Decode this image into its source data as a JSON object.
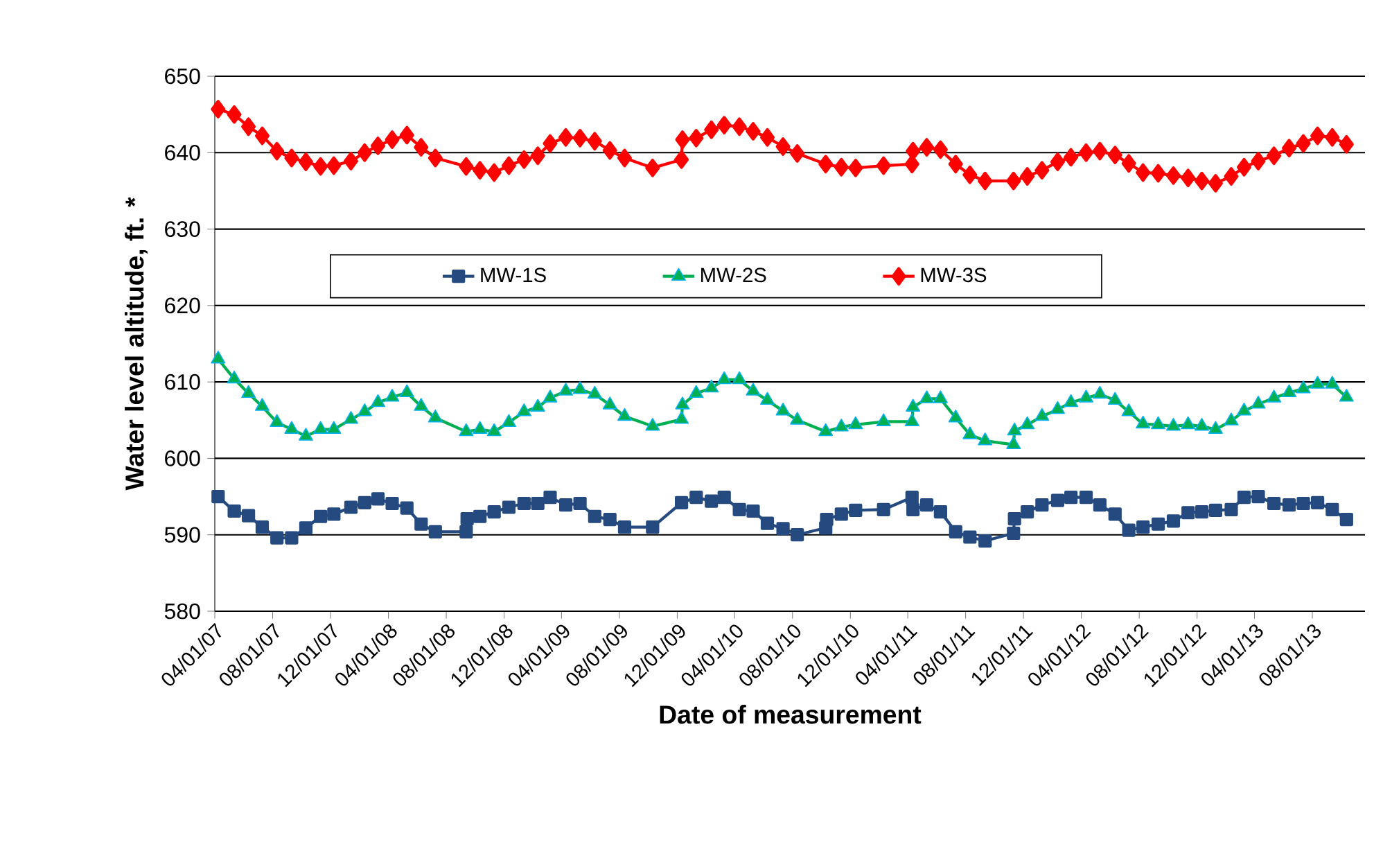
{
  "chart_data": {
    "type": "line",
    "xlabel": "Date of measurement",
    "ylabel": "Water level altitude, ft. *",
    "xlim": [
      "2007-04-01",
      "2013-11-20"
    ],
    "ylim": [
      580,
      650
    ],
    "yticks": [
      580,
      590,
      600,
      610,
      620,
      630,
      640,
      650
    ],
    "xticks": [
      {
        "value": "2007-04-01",
        "label": "04/01/07"
      },
      {
        "value": "2007-08-01",
        "label": "08/01/07"
      },
      {
        "value": "2007-12-01",
        "label": "12/01/07"
      },
      {
        "value": "2008-04-01",
        "label": "04/01/08"
      },
      {
        "value": "2008-08-01",
        "label": "08/01/08"
      },
      {
        "value": "2008-12-01",
        "label": "12/01/08"
      },
      {
        "value": "2009-04-01",
        "label": "04/01/09"
      },
      {
        "value": "2009-08-01",
        "label": "08/01/09"
      },
      {
        "value": "2009-12-01",
        "label": "12/01/09"
      },
      {
        "value": "2010-04-01",
        "label": "04/01/10"
      },
      {
        "value": "2010-08-01",
        "label": "08/01/10"
      },
      {
        "value": "2010-12-01",
        "label": "12/01/10"
      },
      {
        "value": "2011-04-01",
        "label": "04/01/11"
      },
      {
        "value": "2011-08-01",
        "label": "08/01/11"
      },
      {
        "value": "2011-12-01",
        "label": "12/01/11"
      },
      {
        "value": "2012-04-01",
        "label": "04/01/12"
      },
      {
        "value": "2012-08-01",
        "label": "08/01/12"
      },
      {
        "value": "2012-12-01",
        "label": "12/01/12"
      },
      {
        "value": "2013-04-01",
        "label": "04/01/13"
      },
      {
        "value": "2013-08-01",
        "label": "08/01/13"
      }
    ],
    "grid": "y",
    "legend": "top",
    "line_style": "solid",
    "series": [
      {
        "name": "MW-1S",
        "color": "#244a80",
        "marker": "square",
        "x": [
          "2007-04-08",
          "2007-05-12",
          "2007-06-11",
          "2007-07-10",
          "2007-08-10",
          "2007-09-10",
          "2007-10-10",
          "2007-11-10",
          "2007-12-08",
          "2008-01-13",
          "2008-02-11",
          "2008-03-10",
          "2008-04-09",
          "2008-05-10",
          "2008-06-09",
          "2008-07-09",
          "2008-09-12",
          "2008-09-14",
          "2008-10-11",
          "2008-11-10",
          "2008-12-11",
          "2009-01-12",
          "2009-02-10",
          "2009-03-08",
          "2009-04-10",
          "2009-05-10",
          "2009-06-10",
          "2009-07-12",
          "2009-08-12",
          "2009-10-10",
          "2009-12-10",
          "2010-01-10",
          "2010-02-11",
          "2010-03-10",
          "2010-04-11",
          "2010-05-10",
          "2010-06-09",
          "2010-07-12",
          "2010-08-11",
          "2010-10-10",
          "2010-10-12",
          "2010-11-12",
          "2010-12-12",
          "2011-02-09",
          "2011-04-10",
          "2011-04-12",
          "2011-05-11",
          "2011-06-09",
          "2011-07-11",
          "2011-08-10",
          "2011-09-11",
          "2011-11-10",
          "2011-11-12",
          "2011-12-09",
          "2012-01-09",
          "2012-02-11",
          "2012-03-10",
          "2012-04-11",
          "2012-05-10",
          "2012-06-11",
          "2012-07-10",
          "2012-08-09",
          "2012-09-10",
          "2012-10-12",
          "2012-11-12",
          "2012-12-11",
          "2013-01-09",
          "2013-02-11",
          "2013-03-10",
          "2013-04-09",
          "2013-05-12",
          "2013-06-13",
          "2013-07-13",
          "2013-08-12",
          "2013-09-12",
          "2013-10-12"
        ],
        "values": [
          595.0,
          593.1,
          592.5,
          591.0,
          589.6,
          589.6,
          590.9,
          592.4,
          592.7,
          593.6,
          594.2,
          594.7,
          594.1,
          593.5,
          591.4,
          590.4,
          590.4,
          592.1,
          592.4,
          593.0,
          593.6,
          594.1,
          594.1,
          594.9,
          593.9,
          594.1,
          592.4,
          592.0,
          591.0,
          591.0,
          594.2,
          594.9,
          594.4,
          594.9,
          593.3,
          593.1,
          591.5,
          590.8,
          590.0,
          590.9,
          592.0,
          592.7,
          593.2,
          593.3,
          594.9,
          593.3,
          593.9,
          593.0,
          590.4,
          589.7,
          589.2,
          590.2,
          592.1,
          593.0,
          593.9,
          594.5,
          594.9,
          594.9,
          593.9,
          592.7,
          590.6,
          591.0,
          591.4,
          591.8,
          592.9,
          593.0,
          593.2,
          593.3,
          594.9,
          595.0,
          594.1,
          593.9,
          594.1,
          594.2,
          593.3,
          592.0
        ]
      },
      {
        "name": "MW-2S",
        "color": "#00b050",
        "marker": "triangle",
        "x": [
          "2007-04-08",
          "2007-05-12",
          "2007-06-11",
          "2007-07-10",
          "2007-08-10",
          "2007-09-10",
          "2007-10-10",
          "2007-11-10",
          "2007-12-08",
          "2008-01-13",
          "2008-02-11",
          "2008-03-10",
          "2008-04-09",
          "2008-05-10",
          "2008-06-09",
          "2008-07-09",
          "2008-09-12",
          "2008-10-11",
          "2008-11-10",
          "2008-12-11",
          "2009-01-12",
          "2009-02-10",
          "2009-03-08",
          "2009-04-10",
          "2009-05-10",
          "2009-06-10",
          "2009-07-12",
          "2009-08-12",
          "2009-10-10",
          "2009-12-10",
          "2009-12-12",
          "2010-01-10",
          "2010-02-11",
          "2010-03-10",
          "2010-04-11",
          "2010-05-10",
          "2010-06-09",
          "2010-07-12",
          "2010-08-11",
          "2010-10-10",
          "2010-11-12",
          "2010-12-12",
          "2011-02-09",
          "2011-04-10",
          "2011-04-12",
          "2011-05-11",
          "2011-06-09",
          "2011-07-11",
          "2011-08-10",
          "2011-09-11",
          "2011-11-10",
          "2011-11-12",
          "2011-12-09",
          "2012-01-09",
          "2012-02-11",
          "2012-03-10",
          "2012-04-11",
          "2012-05-10",
          "2012-06-11",
          "2012-07-10",
          "2012-08-09",
          "2012-09-10",
          "2012-10-12",
          "2012-11-12",
          "2012-12-11",
          "2013-01-09",
          "2013-02-11",
          "2013-03-10",
          "2013-04-09",
          "2013-05-12",
          "2013-06-13",
          "2013-07-13",
          "2013-08-12",
          "2013-09-12",
          "2013-10-12"
        ],
        "values": [
          613.0,
          610.4,
          608.5,
          606.8,
          604.7,
          603.8,
          602.9,
          603.8,
          603.8,
          605.1,
          606.1,
          607.3,
          608.0,
          608.6,
          606.8,
          605.3,
          603.5,
          603.8,
          603.5,
          604.7,
          606.1,
          606.7,
          607.9,
          608.8,
          609.0,
          608.4,
          607.0,
          605.5,
          604.2,
          605.1,
          607.0,
          608.5,
          609.2,
          610.3,
          610.3,
          608.8,
          607.6,
          606.2,
          605.0,
          603.5,
          604.1,
          604.4,
          604.8,
          604.8,
          606.7,
          607.8,
          607.8,
          605.3,
          603.1,
          602.3,
          601.8,
          603.6,
          604.4,
          605.5,
          606.4,
          607.3,
          607.9,
          608.4,
          607.6,
          606.1,
          604.5,
          604.4,
          604.2,
          604.4,
          604.2,
          603.8,
          604.9,
          606.2,
          607.1,
          607.9,
          608.6,
          609.1,
          609.7,
          609.7,
          608.0
        ]
      },
      {
        "name": "MW-3S",
        "color": "#ff0000",
        "marker": "diamond",
        "x": [
          "2007-04-08",
          "2007-05-12",
          "2007-06-11",
          "2007-07-10",
          "2007-08-10",
          "2007-09-10",
          "2007-10-10",
          "2007-11-10",
          "2007-12-08",
          "2008-01-13",
          "2008-02-11",
          "2008-03-10",
          "2008-04-09",
          "2008-05-10",
          "2008-06-09",
          "2008-07-09",
          "2008-09-12",
          "2008-10-11",
          "2008-11-10",
          "2008-12-11",
          "2009-01-12",
          "2009-02-10",
          "2009-03-08",
          "2009-04-10",
          "2009-05-10",
          "2009-06-10",
          "2009-07-12",
          "2009-08-12",
          "2009-10-10",
          "2009-12-10",
          "2009-12-12",
          "2010-01-10",
          "2010-02-11",
          "2010-03-10",
          "2010-04-11",
          "2010-05-10",
          "2010-06-09",
          "2010-07-12",
          "2010-08-11",
          "2010-10-10",
          "2010-11-12",
          "2010-12-12",
          "2011-02-09",
          "2011-04-10",
          "2011-04-12",
          "2011-05-11",
          "2011-06-09",
          "2011-07-11",
          "2011-08-10",
          "2011-09-11",
          "2011-11-10",
          "2011-12-09",
          "2012-01-09",
          "2012-02-11",
          "2012-03-10",
          "2012-04-11",
          "2012-05-10",
          "2012-06-11",
          "2012-07-10",
          "2012-08-09",
          "2012-09-10",
          "2012-10-12",
          "2012-11-12",
          "2012-12-11",
          "2013-01-09",
          "2013-02-11",
          "2013-03-10",
          "2013-04-09",
          "2013-05-12",
          "2013-06-13",
          "2013-07-13",
          "2013-08-12",
          "2013-09-12",
          "2013-10-12"
        ],
        "values": [
          645.7,
          645.0,
          643.4,
          642.2,
          640.2,
          639.3,
          638.8,
          638.2,
          638.3,
          638.9,
          640.0,
          640.9,
          641.7,
          642.3,
          640.7,
          639.3,
          638.2,
          637.7,
          637.4,
          638.3,
          639.1,
          639.6,
          641.2,
          642.0,
          641.9,
          641.5,
          640.3,
          639.3,
          638.0,
          639.1,
          641.7,
          641.9,
          643.0,
          643.6,
          643.4,
          642.8,
          642.0,
          640.8,
          639.9,
          638.5,
          638.1,
          638.0,
          638.3,
          638.5,
          640.2,
          640.7,
          640.4,
          638.5,
          637.1,
          636.3,
          636.3,
          636.9,
          637.7,
          638.8,
          639.4,
          640.0,
          640.2,
          639.7,
          638.6,
          637.4,
          637.3,
          637.0,
          636.7,
          636.3,
          636.0,
          636.9,
          638.1,
          638.9,
          639.6,
          640.6,
          641.2,
          642.2,
          642.0,
          641.1
        ]
      }
    ]
  }
}
